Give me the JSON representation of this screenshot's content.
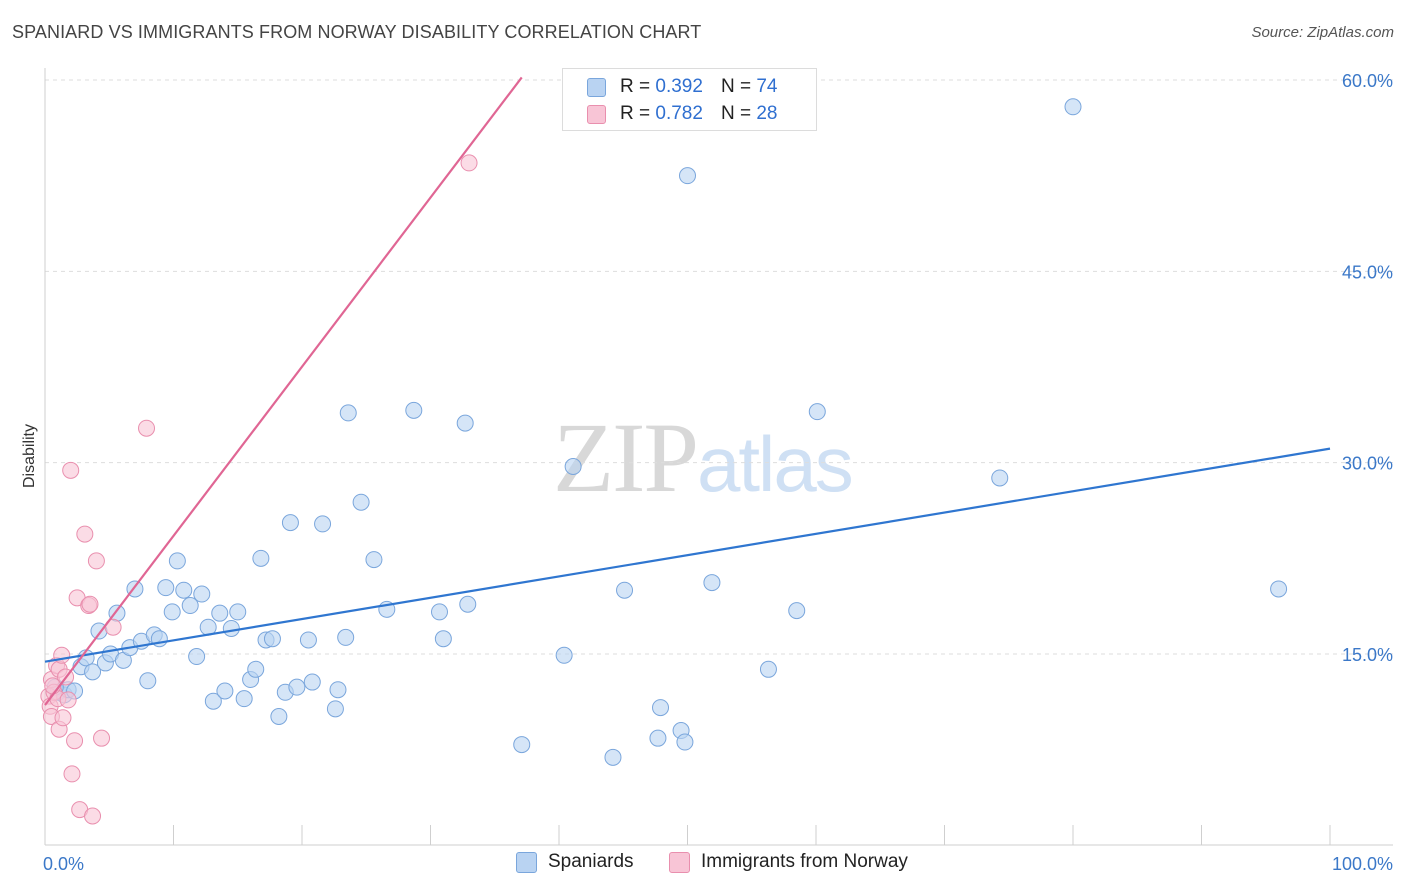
{
  "header": {
    "title": "SPANIARD VS IMMIGRANTS FROM NORWAY DISABILITY CORRELATION CHART",
    "source": "Source: ZipAtlas.com"
  },
  "watermark": {
    "zip": "ZIP",
    "atlas": "atlas"
  },
  "legend": {
    "spaniards": {
      "r_label": "R =",
      "r_value": "0.392",
      "n_label": "N =",
      "n_value": "74"
    },
    "norway": {
      "r_label": "R =",
      "r_value": "0.782",
      "n_label": "N =",
      "n_value": "28"
    }
  },
  "colors": {
    "spaniards_fill": "#b9d3f2",
    "spaniards_stroke": "#7aa6dc",
    "spaniards_line": "#2f76d0",
    "norway_fill": "#f8c5d6",
    "norway_stroke": "#e98fae",
    "norway_line": "#e06694",
    "grid": "#dddddd",
    "axis_text": "#3b78c8"
  },
  "chart_data": {
    "type": "scatter",
    "title": "SPANIARD VS IMMIGRANTS FROM NORWAY DISABILITY CORRELATION CHART",
    "xlabel": "",
    "ylabel": "Disability",
    "xlim": [
      0,
      100
    ],
    "ylim": [
      0,
      63
    ],
    "x_tick_labels": [
      "0.0%",
      "100.0%"
    ],
    "y_ticks": [
      {
        "value": 15,
        "label": "15.0%"
      },
      {
        "value": 30,
        "label": "30.0%"
      },
      {
        "value": 45,
        "label": "45.0%"
      },
      {
        "value": 60,
        "label": "60.0%"
      }
    ],
    "legend_position": "top-center",
    "series": [
      {
        "name": "Spaniards",
        "r": 0.392,
        "n": 74,
        "trend": {
          "x": [
            0,
            100
          ],
          "y": [
            14.4,
            31.1
          ]
        },
        "points": [
          [
            1.0,
            12.0
          ],
          [
            1.5,
            11.8
          ],
          [
            1.8,
            12.2
          ],
          [
            2.3,
            12.1
          ],
          [
            2.8,
            14.0
          ],
          [
            3.2,
            14.7
          ],
          [
            3.7,
            13.6
          ],
          [
            4.2,
            16.8
          ],
          [
            4.7,
            14.3
          ],
          [
            5.1,
            15.0
          ],
          [
            5.6,
            18.2
          ],
          [
            6.1,
            14.5
          ],
          [
            6.6,
            15.5
          ],
          [
            7.0,
            20.1
          ],
          [
            7.5,
            16.0
          ],
          [
            8.0,
            12.9
          ],
          [
            8.5,
            16.5
          ],
          [
            8.9,
            16.2
          ],
          [
            9.4,
            20.2
          ],
          [
            9.9,
            18.3
          ],
          [
            10.3,
            22.3
          ],
          [
            10.8,
            20.0
          ],
          [
            11.3,
            18.8
          ],
          [
            11.8,
            14.8
          ],
          [
            12.2,
            19.7
          ],
          [
            12.7,
            17.1
          ],
          [
            13.1,
            11.3
          ],
          [
            13.6,
            18.2
          ],
          [
            14.0,
            12.1
          ],
          [
            14.5,
            17.0
          ],
          [
            15.0,
            18.3
          ],
          [
            15.5,
            11.5
          ],
          [
            16.0,
            13.0
          ],
          [
            16.4,
            13.8
          ],
          [
            16.8,
            22.5
          ],
          [
            17.2,
            16.1
          ],
          [
            17.7,
            16.2
          ],
          [
            18.2,
            10.1
          ],
          [
            18.7,
            12.0
          ],
          [
            19.1,
            25.3
          ],
          [
            19.6,
            12.4
          ],
          [
            20.5,
            16.1
          ],
          [
            20.8,
            12.8
          ],
          [
            21.6,
            25.2
          ],
          [
            22.6,
            10.7
          ],
          [
            22.8,
            12.2
          ],
          [
            23.4,
            16.3
          ],
          [
            23.6,
            33.9
          ],
          [
            24.6,
            26.9
          ],
          [
            25.6,
            22.4
          ],
          [
            26.6,
            18.5
          ],
          [
            28.7,
            34.1
          ],
          [
            30.7,
            18.3
          ],
          [
            31.0,
            16.2
          ],
          [
            32.7,
            33.1
          ],
          [
            32.9,
            18.9
          ],
          [
            37.1,
            7.9
          ],
          [
            40.4,
            14.9
          ],
          [
            41.1,
            29.7
          ],
          [
            44.2,
            6.9
          ],
          [
            45.1,
            20.0
          ],
          [
            47.7,
            8.4
          ],
          [
            47.9,
            10.8
          ],
          [
            49.5,
            9.0
          ],
          [
            49.8,
            8.1
          ],
          [
            50.0,
            52.5
          ],
          [
            51.9,
            20.6
          ],
          [
            56.3,
            13.8
          ],
          [
            58.5,
            18.4
          ],
          [
            60.1,
            34.0
          ],
          [
            74.3,
            28.8
          ],
          [
            80.0,
            57.9
          ],
          [
            96.0,
            20.1
          ],
          [
            0.8,
            12.4
          ]
        ]
      },
      {
        "name": "Immigrants from Norway",
        "r": 0.782,
        "n": 28,
        "trend": {
          "x": [
            0,
            37.1
          ],
          "y": [
            11.0,
            60.2
          ]
        },
        "points": [
          [
            0.3,
            11.7
          ],
          [
            0.4,
            10.9
          ],
          [
            0.5,
            13.0
          ],
          [
            0.5,
            10.1
          ],
          [
            0.7,
            12.0
          ],
          [
            0.9,
            14.1
          ],
          [
            1.0,
            11.5
          ],
          [
            1.1,
            13.8
          ],
          [
            1.1,
            9.1
          ],
          [
            1.3,
            14.9
          ],
          [
            1.4,
            10.0
          ],
          [
            1.6,
            13.2
          ],
          [
            1.8,
            11.4
          ],
          [
            2.0,
            29.4
          ],
          [
            2.1,
            5.6
          ],
          [
            2.3,
            8.2
          ],
          [
            2.5,
            19.4
          ],
          [
            2.7,
            2.8
          ],
          [
            3.1,
            24.4
          ],
          [
            3.4,
            18.8
          ],
          [
            3.5,
            18.9
          ],
          [
            3.7,
            2.3
          ],
          [
            4.0,
            22.3
          ],
          [
            4.4,
            8.4
          ],
          [
            5.3,
            17.1
          ],
          [
            7.9,
            32.7
          ],
          [
            33.0,
            53.5
          ],
          [
            0.6,
            12.5
          ]
        ]
      }
    ]
  },
  "bottom_legend": {
    "spaniards": "Spaniards",
    "norway": "Immigrants from Norway"
  }
}
